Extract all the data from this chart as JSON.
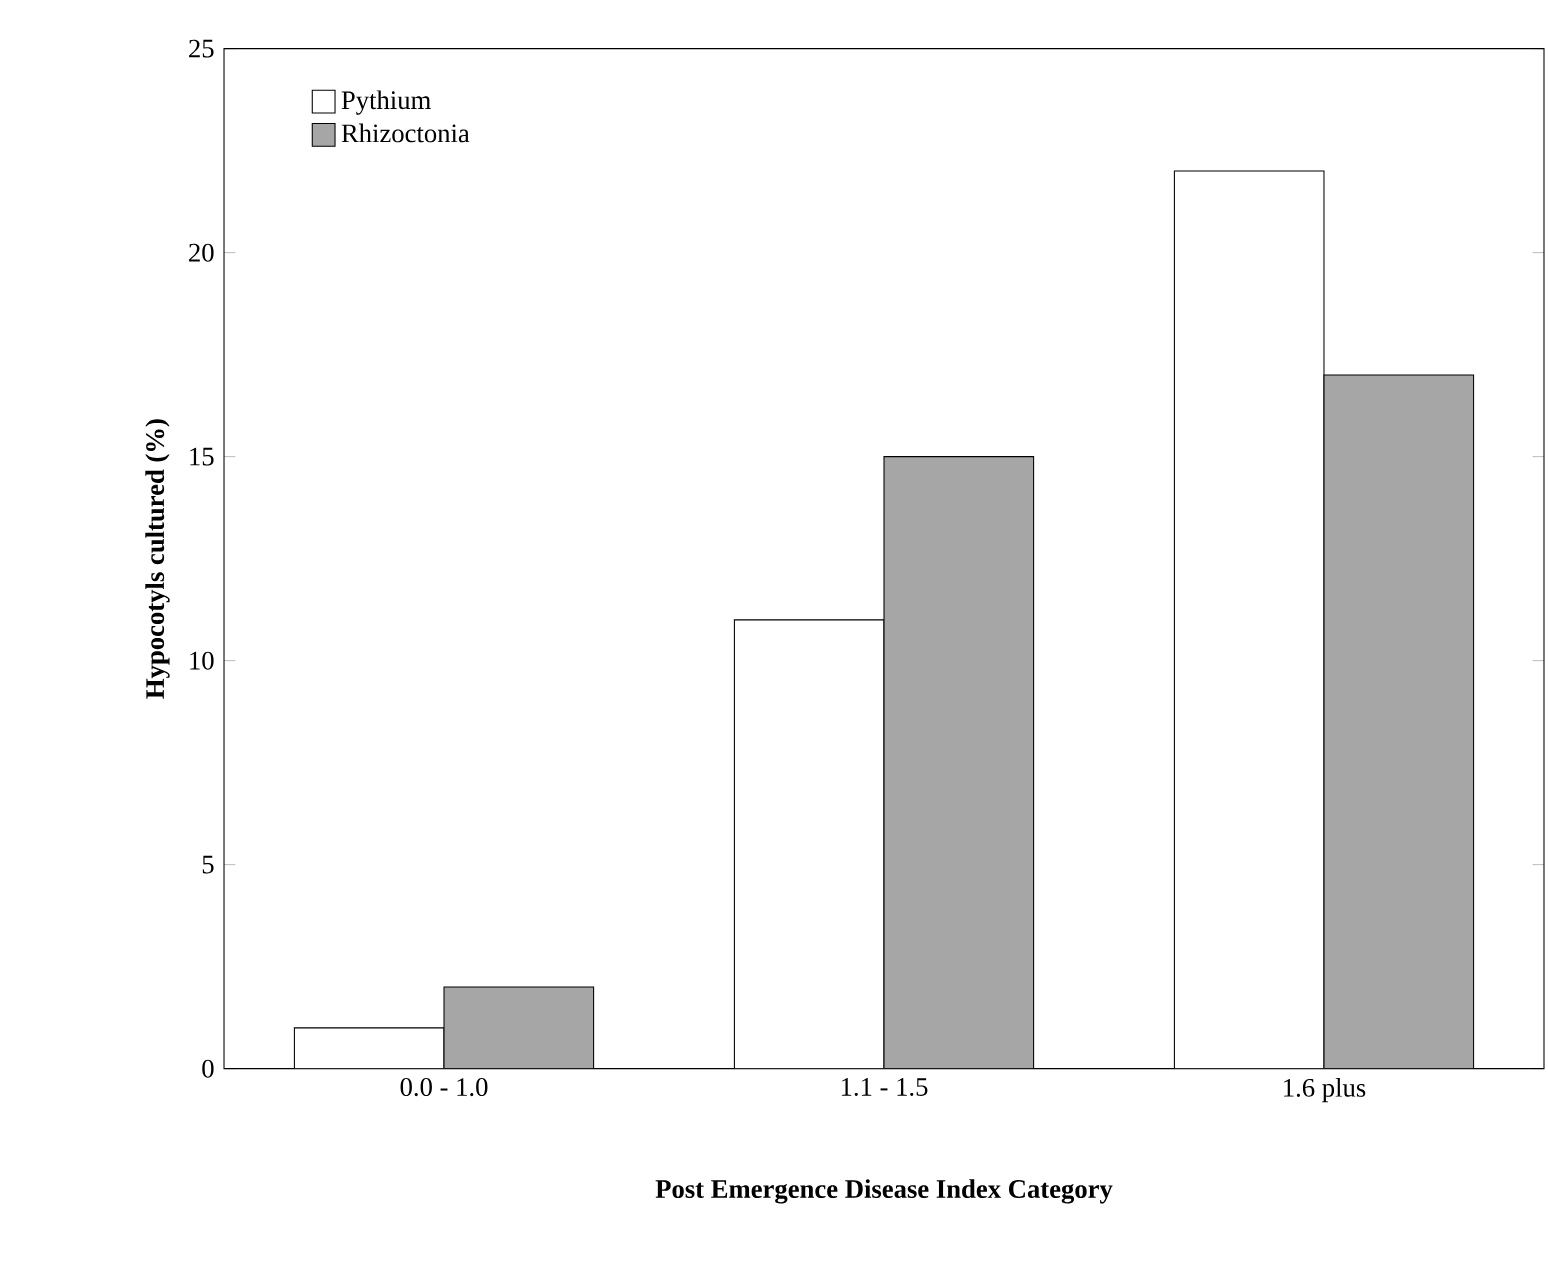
{
  "chart_data": {
    "type": "bar",
    "xlabel": "Post Emergence Disease Index Category",
    "ylabel": "Hypocotyls cultured (%)",
    "categories": [
      "0.0 - 1.0",
      "1.1 - 1.5",
      "1.6 plus"
    ],
    "series": [
      {
        "name": "Pythium",
        "color": "#ffffff",
        "values": [
          1,
          11,
          22
        ]
      },
      {
        "name": "Rhizoctonia",
        "color": "#a6a6a6",
        "values": [
          2,
          15,
          17
        ]
      }
    ],
    "ylim": [
      0,
      25
    ],
    "yticks": [
      0,
      5,
      10,
      15,
      20,
      25
    ],
    "grid": false,
    "legend": "top left"
  }
}
